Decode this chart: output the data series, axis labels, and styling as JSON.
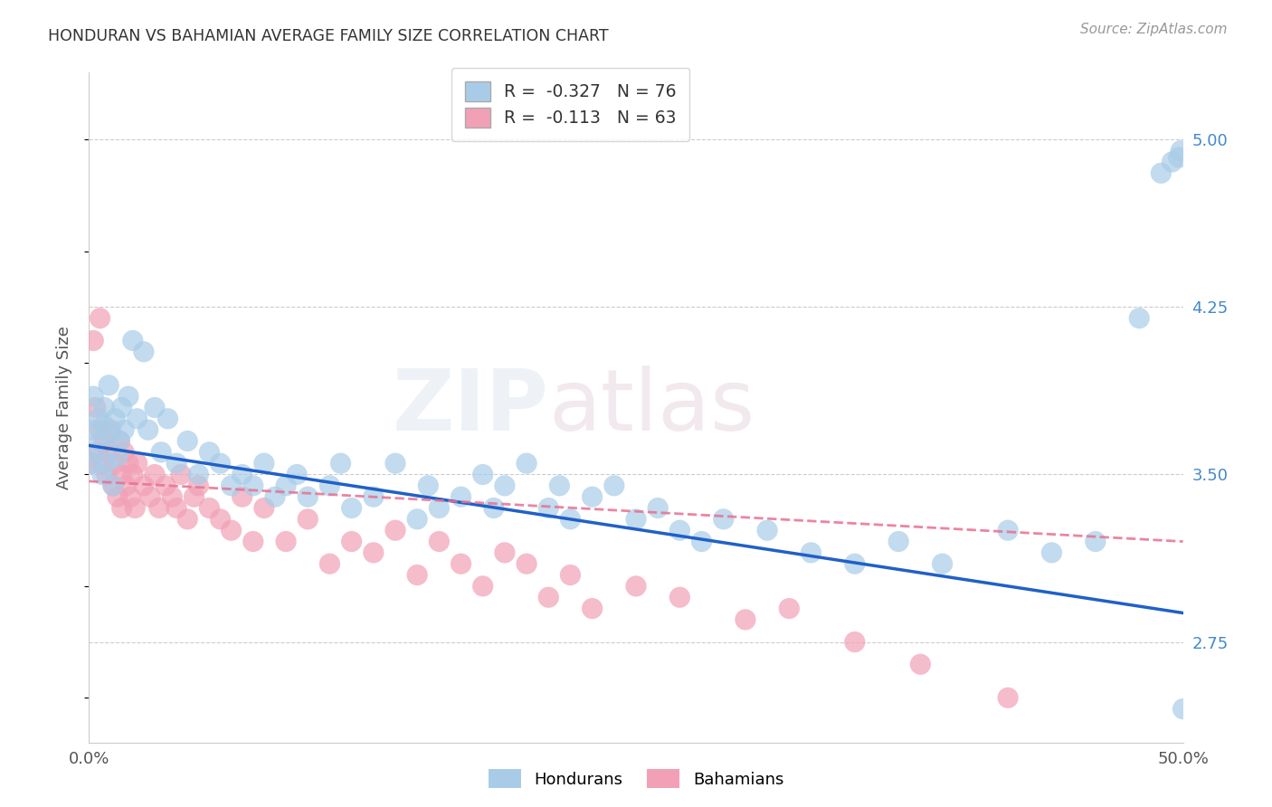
{
  "title": "HONDURAN VS BAHAMIAN AVERAGE FAMILY SIZE CORRELATION CHART",
  "source": "Source: ZipAtlas.com",
  "ylabel": "Average Family Size",
  "watermark": "ZIPatlas",
  "ylim": [
    2.3,
    5.3
  ],
  "xlim": [
    0.0,
    0.5
  ],
  "yticks_right": [
    2.75,
    3.5,
    4.25,
    5.0
  ],
  "honduran_color": "#a8cce8",
  "bahamian_color": "#f2a0b5",
  "honduran_line_color": "#2060c8",
  "bahamian_line_color": "#e87090",
  "right_tick_color": "#4488cc",
  "title_color": "#333333",
  "R_honduran": -0.327,
  "N_honduran": 76,
  "R_bahamian": -0.113,
  "N_bahamian": 63,
  "h_line_x0": 0.0,
  "h_line_y0": 3.63,
  "h_line_x1": 0.5,
  "h_line_y1": 2.88,
  "b_line_x0": 0.0,
  "b_line_y0": 3.47,
  "b_line_x1": 0.5,
  "b_line_y1": 3.2,
  "honduran_x": [
    0.001,
    0.002,
    0.002,
    0.003,
    0.004,
    0.005,
    0.006,
    0.007,
    0.007,
    0.008,
    0.009,
    0.01,
    0.011,
    0.012,
    0.013,
    0.014,
    0.015,
    0.016,
    0.018,
    0.02,
    0.022,
    0.025,
    0.027,
    0.03,
    0.033,
    0.036,
    0.04,
    0.045,
    0.05,
    0.055,
    0.06,
    0.065,
    0.07,
    0.075,
    0.08,
    0.085,
    0.09,
    0.095,
    0.1,
    0.11,
    0.115,
    0.12,
    0.13,
    0.14,
    0.15,
    0.155,
    0.16,
    0.17,
    0.18,
    0.185,
    0.19,
    0.2,
    0.21,
    0.215,
    0.22,
    0.23,
    0.24,
    0.25,
    0.26,
    0.27,
    0.28,
    0.29,
    0.31,
    0.33,
    0.35,
    0.37,
    0.39,
    0.42,
    0.44,
    0.46,
    0.48,
    0.49,
    0.495,
    0.498,
    0.499,
    0.5
  ],
  "honduran_y": [
    3.55,
    3.7,
    3.85,
    3.6,
    3.75,
    3.65,
    3.5,
    3.72,
    3.8,
    3.55,
    3.9,
    3.68,
    3.45,
    3.75,
    3.58,
    3.65,
    3.8,
    3.7,
    3.85,
    4.1,
    3.75,
    4.05,
    3.7,
    3.8,
    3.6,
    3.75,
    3.55,
    3.65,
    3.5,
    3.6,
    3.55,
    3.45,
    3.5,
    3.45,
    3.55,
    3.4,
    3.45,
    3.5,
    3.4,
    3.45,
    3.55,
    3.35,
    3.4,
    3.55,
    3.3,
    3.45,
    3.35,
    3.4,
    3.5,
    3.35,
    3.45,
    3.55,
    3.35,
    3.45,
    3.3,
    3.4,
    3.45,
    3.3,
    3.35,
    3.25,
    3.2,
    3.3,
    3.25,
    3.15,
    3.1,
    3.2,
    3.1,
    3.25,
    3.15,
    3.2,
    4.2,
    4.85,
    4.9,
    4.92,
    4.95,
    2.45
  ],
  "bahamian_x": [
    0.001,
    0.002,
    0.003,
    0.004,
    0.005,
    0.005,
    0.006,
    0.007,
    0.008,
    0.009,
    0.01,
    0.011,
    0.012,
    0.013,
    0.014,
    0.015,
    0.015,
    0.016,
    0.017,
    0.018,
    0.019,
    0.02,
    0.021,
    0.022,
    0.025,
    0.028,
    0.03,
    0.032,
    0.035,
    0.038,
    0.04,
    0.042,
    0.045,
    0.048,
    0.05,
    0.055,
    0.06,
    0.065,
    0.07,
    0.075,
    0.08,
    0.09,
    0.1,
    0.11,
    0.12,
    0.13,
    0.14,
    0.15,
    0.16,
    0.17,
    0.18,
    0.19,
    0.2,
    0.21,
    0.22,
    0.23,
    0.25,
    0.27,
    0.3,
    0.32,
    0.35,
    0.38,
    0.42
  ],
  "bahamian_y": [
    3.55,
    4.1,
    3.8,
    3.6,
    3.7,
    4.2,
    3.55,
    3.65,
    3.5,
    3.6,
    3.7,
    3.45,
    3.55,
    3.4,
    3.65,
    3.5,
    3.35,
    3.6,
    3.45,
    3.55,
    3.4,
    3.5,
    3.35,
    3.55,
    3.45,
    3.4,
    3.5,
    3.35,
    3.45,
    3.4,
    3.35,
    3.5,
    3.3,
    3.4,
    3.45,
    3.35,
    3.3,
    3.25,
    3.4,
    3.2,
    3.35,
    3.2,
    3.3,
    3.1,
    3.2,
    3.15,
    3.25,
    3.05,
    3.2,
    3.1,
    3.0,
    3.15,
    3.1,
    2.95,
    3.05,
    2.9,
    3.0,
    2.95,
    2.85,
    2.9,
    2.75,
    2.65,
    2.5
  ]
}
